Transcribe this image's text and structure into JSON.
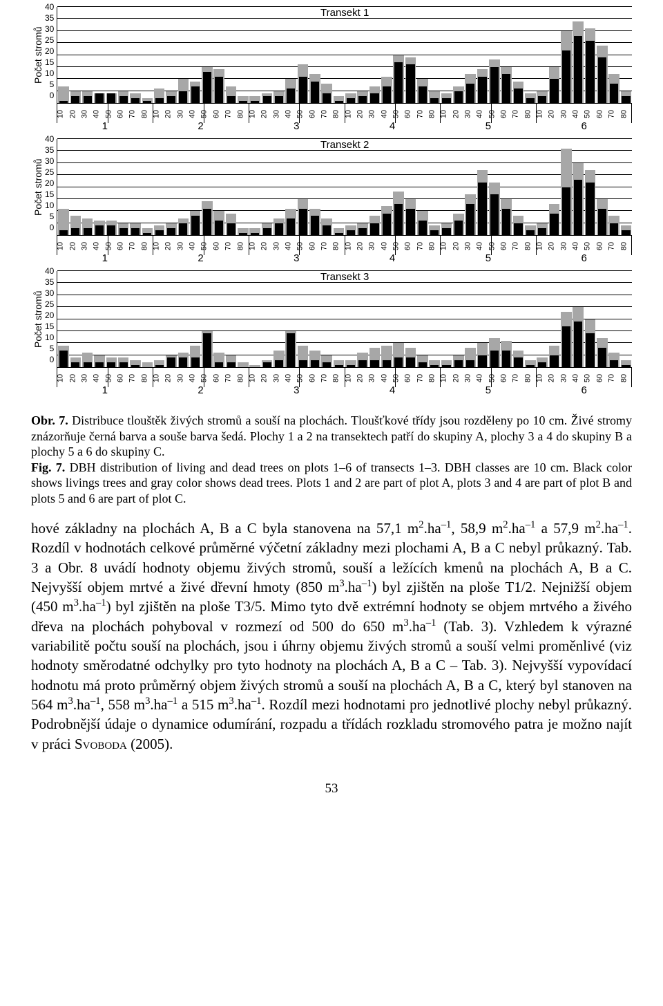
{
  "chart_common": {
    "y_label": "Počet stromů",
    "y_ticks": [
      0,
      5,
      10,
      15,
      20,
      25,
      30,
      35,
      40
    ],
    "y_max": 40,
    "x_labels": [
      "10",
      "20",
      "30",
      "40",
      "50",
      "60",
      "70",
      "80"
    ],
    "groups": [
      "1",
      "2",
      "3",
      "4",
      "5",
      "6"
    ],
    "bar_color_live": "#000000",
    "bar_color_dead": "#a7a7a7",
    "grid_color": "#000000",
    "bg_color": "#ffffff",
    "title_fontsize": 15,
    "tick_fontsize": 12
  },
  "transects": [
    {
      "title": "Transekt 1",
      "data": [
        {
          "black": 1,
          "gray": 7
        },
        {
          "black": 3,
          "gray": 5
        },
        {
          "black": 3,
          "gray": 5
        },
        {
          "black": 4,
          "gray": 4
        },
        {
          "black": 4,
          "gray": 4
        },
        {
          "black": 3,
          "gray": 5
        },
        {
          "black": 2,
          "gray": 4
        },
        {
          "black": 1,
          "gray": 2
        },
        {
          "black": 2,
          "gray": 6
        },
        {
          "black": 3,
          "gray": 5
        },
        {
          "black": 5,
          "gray": 10
        },
        {
          "black": 7,
          "gray": 9
        },
        {
          "black": 13,
          "gray": 15
        },
        {
          "black": 11,
          "gray": 14
        },
        {
          "black": 3,
          "gray": 7
        },
        {
          "black": 1,
          "gray": 3
        },
        {
          "black": 1,
          "gray": 3
        },
        {
          "black": 3,
          "gray": 4
        },
        {
          "black": 3,
          "gray": 5
        },
        {
          "black": 6,
          "gray": 10
        },
        {
          "black": 11,
          "gray": 16
        },
        {
          "black": 9,
          "gray": 12
        },
        {
          "black": 4,
          "gray": 8
        },
        {
          "black": 1,
          "gray": 3
        },
        {
          "black": 2,
          "gray": 4
        },
        {
          "black": 3,
          "gray": 5
        },
        {
          "black": 4,
          "gray": 7
        },
        {
          "black": 7,
          "gray": 11
        },
        {
          "black": 17,
          "gray": 20
        },
        {
          "black": 16,
          "gray": 19
        },
        {
          "black": 7,
          "gray": 10
        },
        {
          "black": 2,
          "gray": 5
        },
        {
          "black": 2,
          "gray": 4
        },
        {
          "black": 5,
          "gray": 7
        },
        {
          "black": 8,
          "gray": 12
        },
        {
          "black": 11,
          "gray": 14
        },
        {
          "black": 15,
          "gray": 18
        },
        {
          "black": 12,
          "gray": 15
        },
        {
          "black": 6,
          "gray": 9
        },
        {
          "black": 2,
          "gray": 4
        },
        {
          "black": 3,
          "gray": 5
        },
        {
          "black": 10,
          "gray": 15
        },
        {
          "black": 22,
          "gray": 30
        },
        {
          "black": 28,
          "gray": 34
        },
        {
          "black": 26,
          "gray": 31
        },
        {
          "black": 19,
          "gray": 24
        },
        {
          "black": 8,
          "gray": 12
        },
        {
          "black": 3,
          "gray": 5
        }
      ]
    },
    {
      "title": "Transekt 2",
      "data": [
        {
          "black": 2,
          "gray": 11
        },
        {
          "black": 3,
          "gray": 8
        },
        {
          "black": 3,
          "gray": 7
        },
        {
          "black": 4,
          "gray": 6
        },
        {
          "black": 4,
          "gray": 6
        },
        {
          "black": 3,
          "gray": 5
        },
        {
          "black": 3,
          "gray": 5
        },
        {
          "black": 1,
          "gray": 3
        },
        {
          "black": 2,
          "gray": 4
        },
        {
          "black": 3,
          "gray": 5
        },
        {
          "black": 5,
          "gray": 7
        },
        {
          "black": 8,
          "gray": 10
        },
        {
          "black": 11,
          "gray": 14
        },
        {
          "black": 6,
          "gray": 10
        },
        {
          "black": 5,
          "gray": 9
        },
        {
          "black": 1,
          "gray": 3
        },
        {
          "black": 1,
          "gray": 3
        },
        {
          "black": 3,
          "gray": 5
        },
        {
          "black": 5,
          "gray": 7
        },
        {
          "black": 7,
          "gray": 11
        },
        {
          "black": 11,
          "gray": 15
        },
        {
          "black": 8,
          "gray": 11
        },
        {
          "black": 4,
          "gray": 7
        },
        {
          "black": 1,
          "gray": 3
        },
        {
          "black": 2,
          "gray": 4
        },
        {
          "black": 3,
          "gray": 5
        },
        {
          "black": 5,
          "gray": 8
        },
        {
          "black": 9,
          "gray": 12
        },
        {
          "black": 13,
          "gray": 18
        },
        {
          "black": 11,
          "gray": 15
        },
        {
          "black": 6,
          "gray": 10
        },
        {
          "black": 2,
          "gray": 4
        },
        {
          "black": 3,
          "gray": 5
        },
        {
          "black": 6,
          "gray": 9
        },
        {
          "black": 13,
          "gray": 17
        },
        {
          "black": 22,
          "gray": 27
        },
        {
          "black": 17,
          "gray": 22
        },
        {
          "black": 11,
          "gray": 15
        },
        {
          "black": 5,
          "gray": 8
        },
        {
          "black": 2,
          "gray": 4
        },
        {
          "black": 3,
          "gray": 5
        },
        {
          "black": 9,
          "gray": 13
        },
        {
          "black": 20,
          "gray": 36
        },
        {
          "black": 23,
          "gray": 30
        },
        {
          "black": 22,
          "gray": 27
        },
        {
          "black": 11,
          "gray": 15
        },
        {
          "black": 5,
          "gray": 8
        },
        {
          "black": 2,
          "gray": 4
        }
      ]
    },
    {
      "title": "Transekt 3",
      "data": [
        {
          "black": 7,
          "gray": 9
        },
        {
          "black": 2,
          "gray": 4
        },
        {
          "black": 2,
          "gray": 6
        },
        {
          "black": 2,
          "gray": 5
        },
        {
          "black": 2,
          "gray": 4
        },
        {
          "black": 2,
          "gray": 4
        },
        {
          "black": 1,
          "gray": 3
        },
        {
          "black": 0,
          "gray": 2
        },
        {
          "black": 1,
          "gray": 3
        },
        {
          "black": 4,
          "gray": 5
        },
        {
          "black": 4,
          "gray": 6
        },
        {
          "black": 4,
          "gray": 9
        },
        {
          "black": 14,
          "gray": 15
        },
        {
          "black": 2,
          "gray": 6
        },
        {
          "black": 2,
          "gray": 5
        },
        {
          "black": 0,
          "gray": 2
        },
        {
          "black": 0,
          "gray": 1
        },
        {
          "black": 2,
          "gray": 3
        },
        {
          "black": 3,
          "gray": 7
        },
        {
          "black": 14,
          "gray": 15
        },
        {
          "black": 3,
          "gray": 9
        },
        {
          "black": 3,
          "gray": 7
        },
        {
          "black": 2,
          "gray": 5
        },
        {
          "black": 1,
          "gray": 3
        },
        {
          "black": 1,
          "gray": 3
        },
        {
          "black": 3,
          "gray": 6
        },
        {
          "black": 3,
          "gray": 8
        },
        {
          "black": 3,
          "gray": 9
        },
        {
          "black": 4,
          "gray": 10
        },
        {
          "black": 4,
          "gray": 8
        },
        {
          "black": 2,
          "gray": 5
        },
        {
          "black": 1,
          "gray": 3
        },
        {
          "black": 1,
          "gray": 3
        },
        {
          "black": 3,
          "gray": 5
        },
        {
          "black": 3,
          "gray": 8
        },
        {
          "black": 5,
          "gray": 10
        },
        {
          "black": 7,
          "gray": 12
        },
        {
          "black": 7,
          "gray": 11
        },
        {
          "black": 4,
          "gray": 7
        },
        {
          "black": 1,
          "gray": 3
        },
        {
          "black": 2,
          "gray": 4
        },
        {
          "black": 5,
          "gray": 9
        },
        {
          "black": 17,
          "gray": 23
        },
        {
          "black": 19,
          "gray": 25
        },
        {
          "black": 14,
          "gray": 20
        },
        {
          "black": 8,
          "gray": 12
        },
        {
          "black": 3,
          "gray": 6
        },
        {
          "black": 1,
          "gray": 3
        }
      ]
    }
  ],
  "caption": {
    "cz_bold": "Obr. 7.",
    "cz": " Distribuce tlouštěk živých stromů a souší na plochách. Tloušťkové třídy jsou rozděleny po 10 cm. Živé stromy znázorňuje černá barva a souše barva šedá. Plochy 1 a 2 na transektech patří do skupiny A, plochy 3 a 4 do skupiny B a plochy 5 a 6 do skupiny C.",
    "en_bold": "Fig. 7.",
    "en": " DBH distribution of living and dead trees on plots 1–6 of transects 1–3. DBH classes are 10 cm. Black color shows livings trees and gray color shows dead trees. Plots 1 and 2 are part of plot A, plots 3 and 4 are part of plot B and plots 5 and 6 are part of plot C."
  },
  "body": {
    "p1a": "hové základny na plochách A, B a C byla stanovena na 57,1 m",
    "p1b": ".ha",
    "p1c": ", 58,9 m",
    "p1d": ".ha",
    "p1e": " a 57,9 m",
    "p1f": ".ha",
    "p1g": ". Rozdíl v hodnotách celkové průměrné výčetní základny mezi plochami A, B a C nebyl průkazný. Tab. 3 a Obr. 8 uvádí hodnoty objemu živých stromů, souší a ležících kmenů na plochách A, B a C. Nejvyšší objem mrtvé a živé dřevní hmoty (850 m",
    "p1h": ".ha",
    "p1i": ") byl zjištěn na ploše T1/2. Nejnižší objem (450 m",
    "p1j": ".ha",
    "p1k": ") byl zjištěn na ploše T3/5. Mimo tyto dvě extrémní hodnoty se objem mrtvého a živého dřeva na plochách pohyboval v rozmezí od 500 do 650 m",
    "p1l": ".ha",
    "p1m": " (Tab. 3). Vzhledem k výrazné variabilitě počtu souší na plochách, jsou i úhrny objemu živých stromů a souší velmi proměnlivé (viz hodnoty směrodatné odchylky pro tyto hodnoty na plochách A, B a C – Tab. 3). Nejvyšší vypovídací hodnotu má proto průměrný objem živých stromů a souší na plochách A, B a C, který byl stanoven na 564 m",
    "p1n": ".ha",
    "p1o": ", 558 m",
    "p1p": ".ha",
    "p1q": " a 515 m",
    "p1r": ".ha",
    "p1s": ". Rozdíl mezi hodnotami pro jednotlivé plochy nebyl průkazný. Podrobnější údaje o dynamice odumírání, rozpadu a třídách rozkladu stromového patra je možno najít v práci ",
    "author": "Svoboda",
    "p1t": " (2005)."
  },
  "page_number": "53"
}
